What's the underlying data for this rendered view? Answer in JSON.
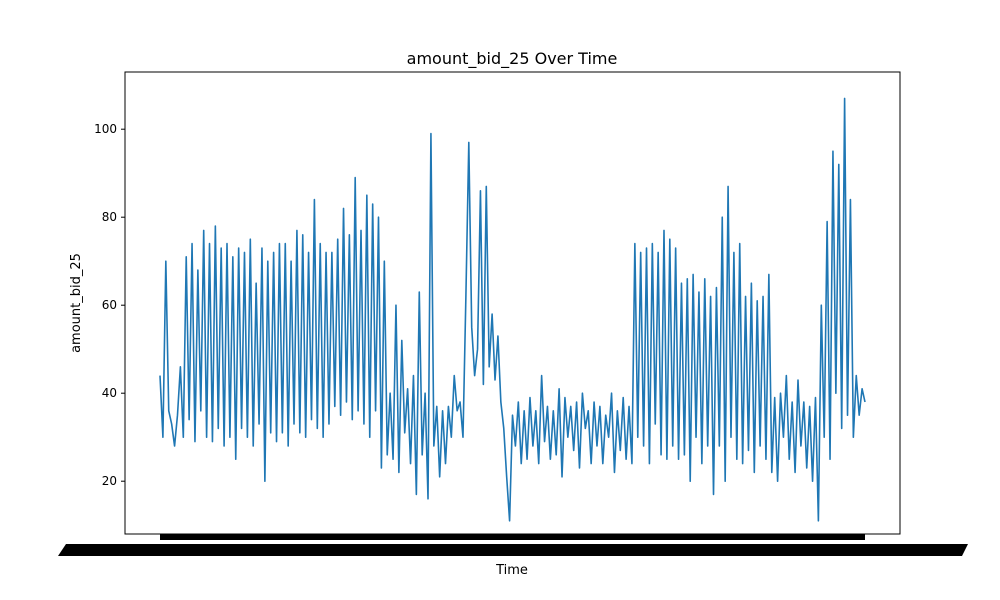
{
  "chart_data": {
    "type": "line",
    "title": "amount_bid_25 Over Time",
    "xlabel": "Time",
    "ylabel": "amount_bid_25",
    "ylim": [
      8,
      113
    ],
    "y_ticks": [
      20,
      40,
      60,
      80,
      100
    ],
    "x_tick_labels_legible": false,
    "grid": false,
    "line_color": "#1f77b4",
    "series": [
      {
        "values": [
          44,
          30,
          70,
          36,
          33,
          28,
          35,
          46,
          30,
          71,
          34,
          74,
          29,
          68,
          36,
          77,
          30,
          74,
          29,
          78,
          32,
          73,
          28,
          74,
          30,
          71,
          25,
          73,
          32,
          72,
          30,
          75,
          28,
          65,
          33,
          73,
          20,
          70,
          31,
          72,
          29,
          74,
          31,
          74,
          28,
          70,
          33,
          77,
          31,
          76,
          30,
          72,
          34,
          84,
          32,
          74,
          30,
          72,
          33,
          72,
          37,
          75,
          35,
          82,
          38,
          76,
          34,
          89,
          36,
          77,
          33,
          85,
          30,
          83,
          36,
          80,
          23,
          70,
          26,
          40,
          25,
          60,
          22,
          52,
          31,
          41,
          24,
          44,
          17,
          63,
          26,
          40,
          16,
          99,
          28,
          37,
          21,
          36,
          24,
          37,
          30,
          44,
          36,
          38,
          30,
          62,
          97,
          55,
          44,
          50,
          86,
          42,
          87,
          46,
          58,
          43,
          53,
          38,
          32,
          21,
          11,
          35,
          28,
          38,
          24,
          36,
          25,
          39,
          28,
          36,
          24,
          44,
          29,
          37,
          25,
          36,
          26,
          41,
          21,
          39,
          30,
          37,
          27,
          38,
          23,
          40,
          32,
          36,
          24,
          38,
          28,
          37,
          24,
          35,
          30,
          40,
          22,
          36,
          27,
          39,
          25,
          37,
          24,
          74,
          30,
          72,
          28,
          73,
          24,
          74,
          33,
          72,
          26,
          77,
          25,
          75,
          28,
          73,
          25,
          65,
          26,
          66,
          20,
          67,
          30,
          63,
          24,
          66,
          28,
          62,
          17,
          64,
          28,
          80,
          20,
          87,
          30,
          72,
          25,
          74,
          24,
          62,
          27,
          65,
          22,
          61,
          28,
          62,
          25,
          67,
          22,
          39,
          20,
          40,
          30,
          44,
          25,
          38,
          22,
          43,
          28,
          38,
          23,
          37,
          20,
          39,
          11,
          60,
          30,
          79,
          25,
          95,
          40,
          92,
          32,
          107,
          35,
          84,
          30,
          44,
          35,
          41,
          38
        ]
      }
    ]
  }
}
